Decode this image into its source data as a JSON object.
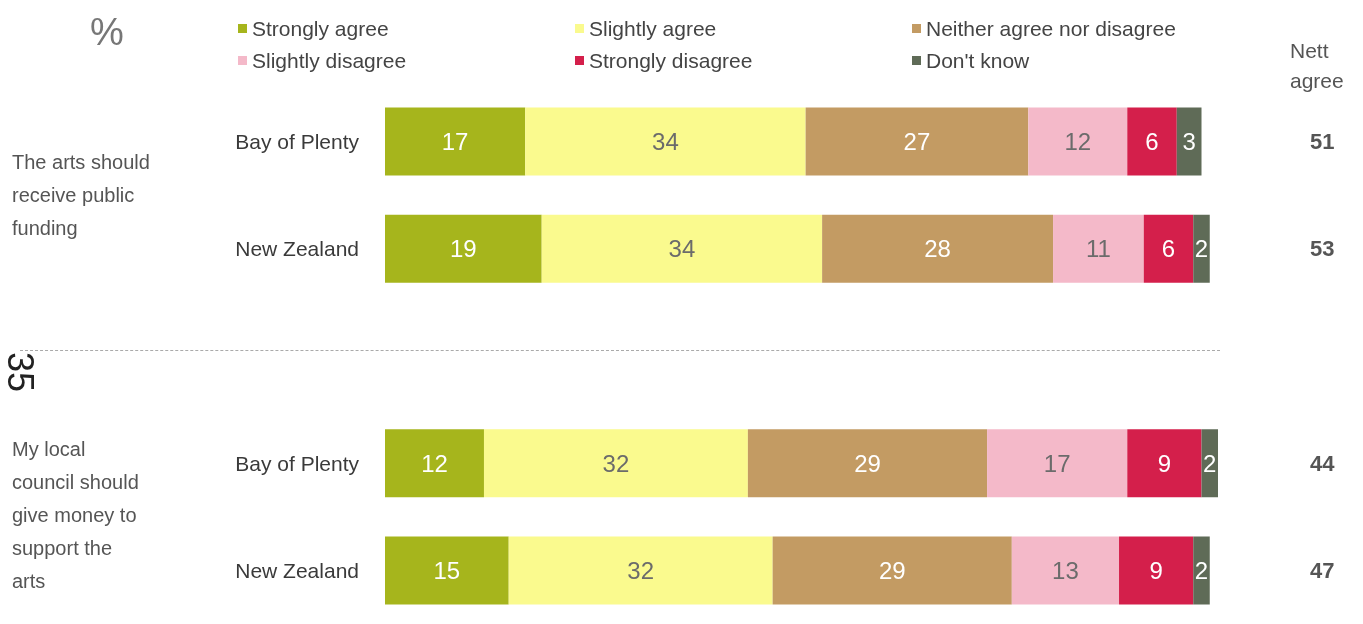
{
  "chart_data": {
    "type": "bar",
    "orientation": "horizontal",
    "stacked": true,
    "title": "%",
    "categories": [
      "Bay of Plenty",
      "New Zealand",
      null,
      "Bay of Plenty",
      "New Zealand"
    ],
    "series": [
      {
        "name": "Strongly agree",
        "color": "#a6b51c",
        "values": [
          17,
          19,
          null,
          12,
          15
        ]
      },
      {
        "name": "Slightly agree",
        "color": "#fafa8e",
        "values": [
          34,
          34,
          null,
          32,
          32
        ]
      },
      {
        "name": "Neither agree nor disagree",
        "color": "#c39b63",
        "values": [
          27,
          28,
          null,
          29,
          29
        ]
      },
      {
        "name": "Slightly disagree",
        "color": "#f4b9c9",
        "values": [
          12,
          11,
          null,
          17,
          13
        ]
      },
      {
        "name": "Strongly disagree",
        "color": "#d41f4b",
        "values": [
          6,
          6,
          null,
          9,
          9
        ]
      },
      {
        "name": "Don't know",
        "color": "#5f6b57",
        "values": [
          3,
          2,
          null,
          2,
          2
        ]
      }
    ],
    "xlim": [
      0,
      101
    ],
    "tick_labels": "y",
    "legend": "top",
    "data_labels": true,
    "annotations": [
      "The arts should receive public funding",
      "My local council should give money to support the arts",
      "Nett agree",
      "35",
      "51",
      "53",
      "44",
      "47"
    ]
  }
}
